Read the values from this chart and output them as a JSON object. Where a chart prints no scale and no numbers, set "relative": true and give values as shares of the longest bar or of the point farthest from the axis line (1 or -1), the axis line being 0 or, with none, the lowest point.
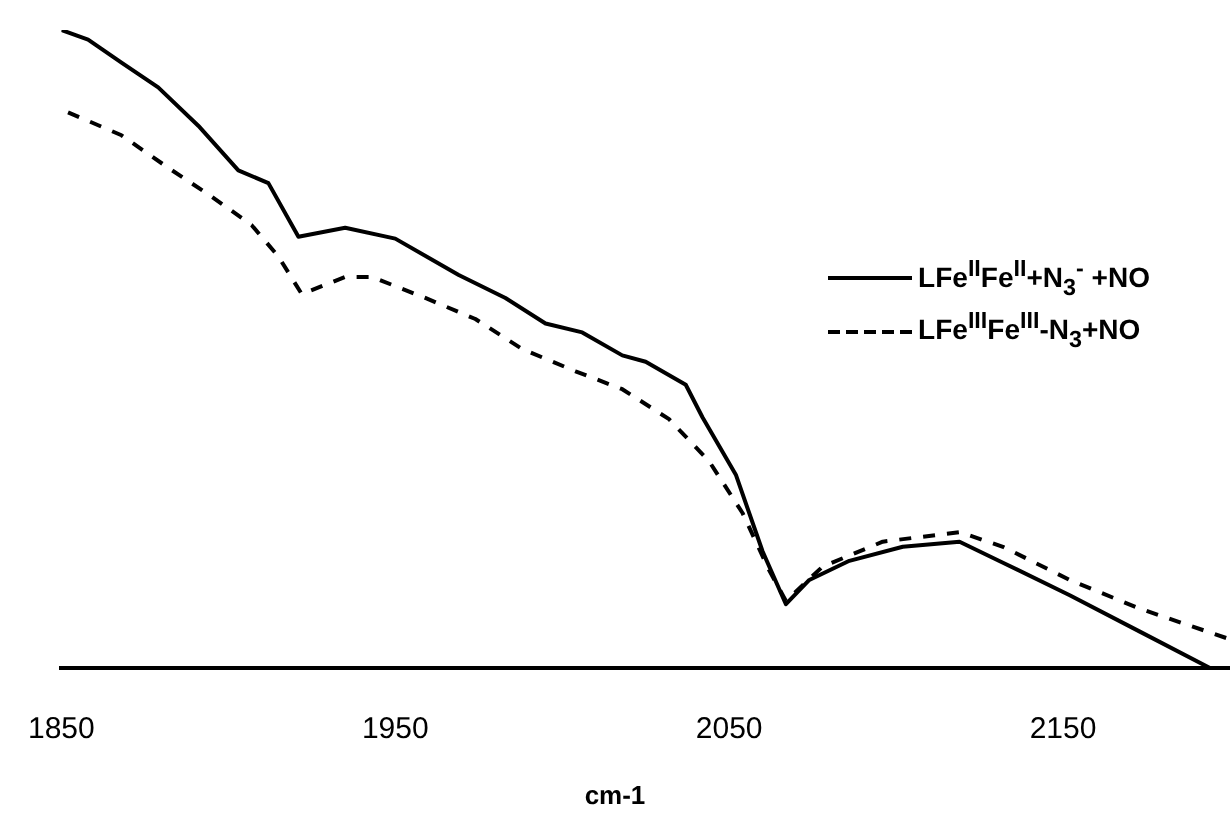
{
  "chart_data": {
    "type": "line",
    "relative": true,
    "xlabel": "cm-1",
    "xlim": [
      1850,
      2200
    ],
    "xticks": [
      1850,
      1950,
      2050,
      2150
    ],
    "grid": false,
    "legend": "right",
    "marker": "none",
    "series": [
      {
        "name": "LFe$^{II}$Fe$^{II}$+N$_{3}$$^{-}$ +NO",
        "color": "#000000",
        "line_style": "solid",
        "x": [
          1850,
          1858,
          1868,
          1879,
          1891,
          1903,
          1912,
          1921,
          1935,
          1950,
          1969,
          1983,
          1995,
          2006,
          2018,
          2025,
          2037,
          2042,
          2052,
          2060,
          2067,
          2074,
          2086,
          2102,
          2119,
          2132,
          2152,
          2173,
          2194
        ],
        "values": [
          1.0,
          0.985,
          0.949,
          0.91,
          0.85,
          0.78,
          0.76,
          0.676,
          0.69,
          0.673,
          0.616,
          0.58,
          0.54,
          0.526,
          0.49,
          0.48,
          0.444,
          0.393,
          0.303,
          0.183,
          0.1,
          0.138,
          0.168,
          0.19,
          0.198,
          0.165,
          0.114,
          0.057,
          0
        ]
      },
      {
        "name": "LFe$^{III}$Fe$^{III}$-N$_{3}$+NO",
        "color": "#000000",
        "line_style": "dashed",
        "x": [
          1852,
          1868,
          1882,
          1895,
          1907,
          1915,
          1922,
          1935,
          1943,
          1959,
          1974,
          1988,
          2004,
          2018,
          2032,
          2044,
          2054,
          2062,
          2067,
          2078,
          2096,
          2119,
          2132,
          2152,
          2173,
          2200
        ],
        "values": [
          0.871,
          0.835,
          0.784,
          0.739,
          0.694,
          0.645,
          0.586,
          0.613,
          0.613,
          0.58,
          0.547,
          0.5,
          0.465,
          0.437,
          0.39,
          0.324,
          0.243,
          0.153,
          0.105,
          0.159,
          0.198,
          0.213,
          0.19,
          0.138,
          0.093,
          0.045
        ]
      }
    ]
  }
}
